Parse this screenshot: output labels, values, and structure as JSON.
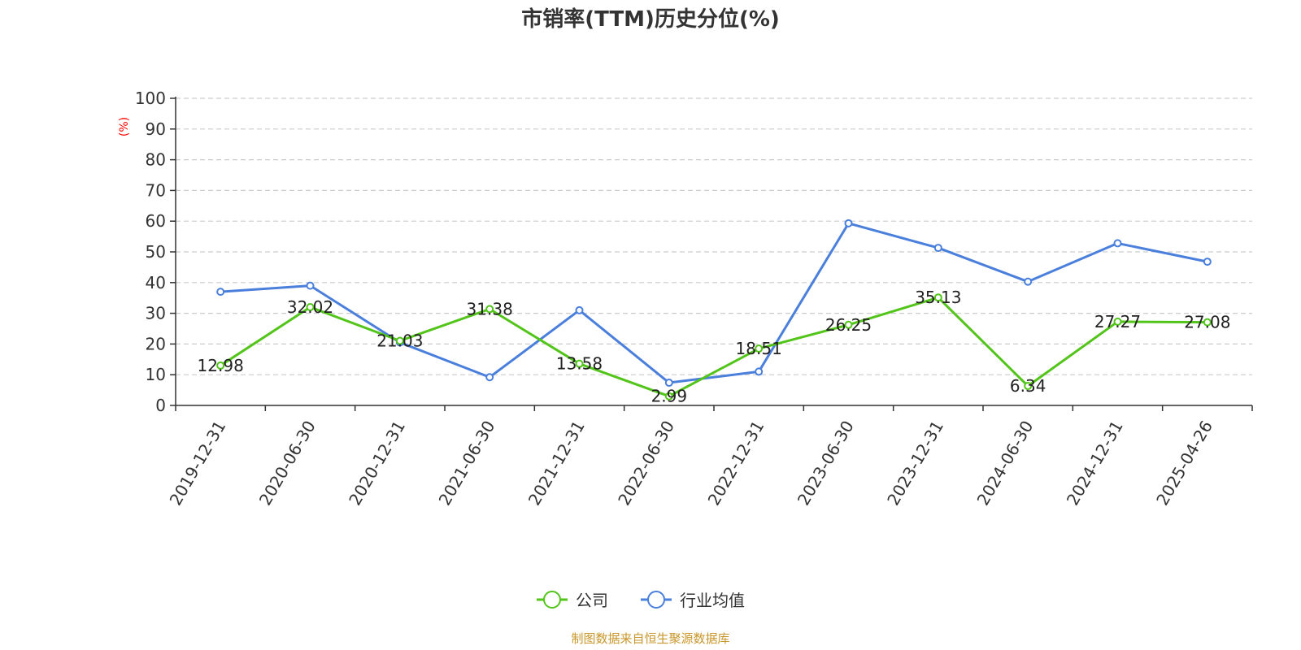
{
  "chart_data": {
    "type": "line",
    "title": "市销率(TTM)历史分位(%)",
    "ylabel": "(%)",
    "xlabel": "",
    "ylim": [
      0,
      100
    ],
    "yticks": [
      0,
      10,
      20,
      30,
      40,
      50,
      60,
      70,
      80,
      90,
      100
    ],
    "grid": true,
    "legend_position": "bottom-center",
    "categories": [
      "2019-12-31",
      "2020-06-30",
      "2020-12-31",
      "2021-06-30",
      "2021-12-31",
      "2022-06-30",
      "2022-12-31",
      "2023-06-30",
      "2023-12-31",
      "2024-06-30",
      "2024-12-31",
      "2025-04-26"
    ],
    "series": [
      {
        "name": "公司",
        "color": "#52c41a",
        "values": [
          12.98,
          32.02,
          21.03,
          31.38,
          13.58,
          2.99,
          18.51,
          26.25,
          35.13,
          6.34,
          27.27,
          27.08
        ],
        "labels": [
          "12.98",
          "32.02",
          "21.03",
          "31.38",
          "13.58",
          "2.99",
          "18.51",
          "26.25",
          "35.13",
          "6.34",
          "27.27",
          "27.08"
        ]
      },
      {
        "name": "行业均值",
        "color": "#4a7fdc",
        "values": [
          37.0,
          39.0,
          20.5,
          9.2,
          31.0,
          7.4,
          11.0,
          59.3,
          51.3,
          40.3,
          52.8,
          46.8
        ]
      }
    ],
    "source": "制图数据来自恒生聚源数据库",
    "source_color": "#c8962a",
    "unit_color": "#ff0000"
  }
}
